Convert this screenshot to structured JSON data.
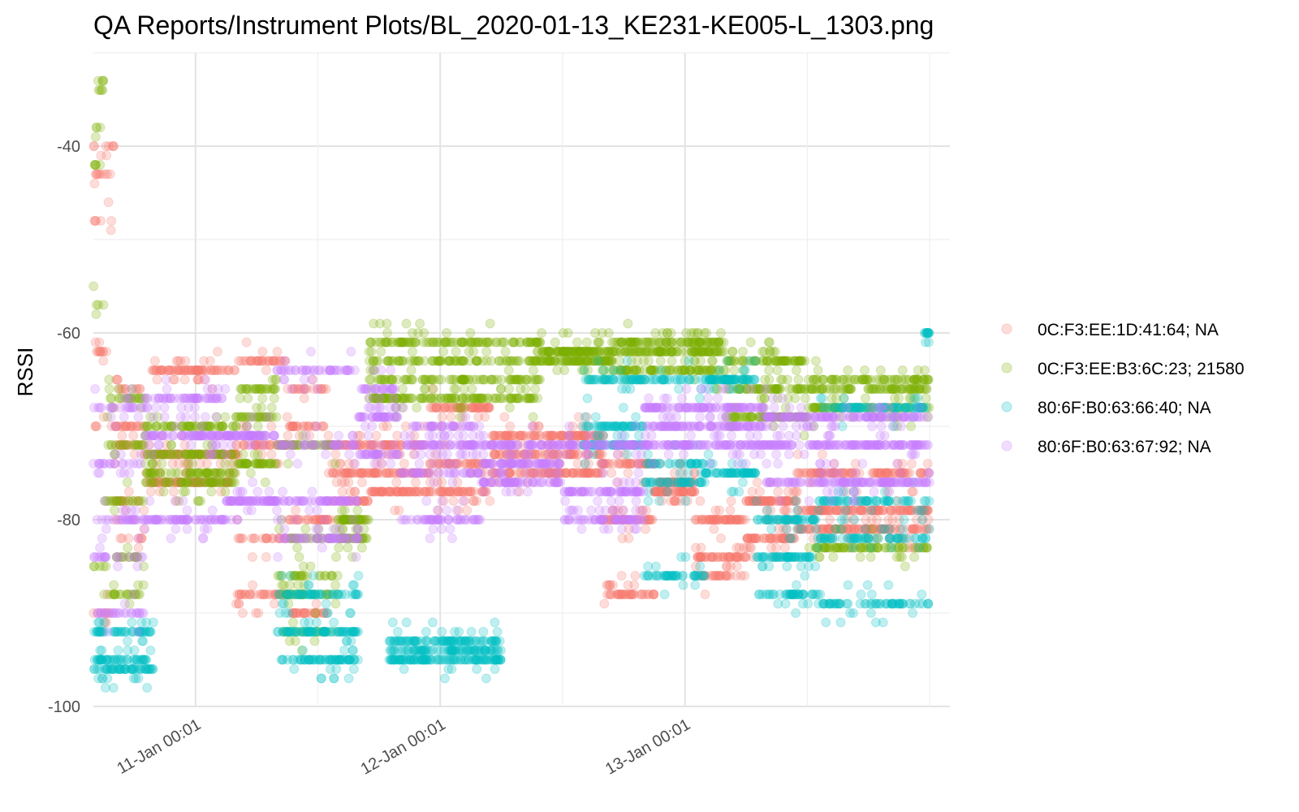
{
  "chart_data": {
    "type": "scatter",
    "title": "QA Reports/Instrument Plots/BL_2020-01-13_KE231-KE005-L_1303.png",
    "xlabel": "",
    "ylabel": "RSSI",
    "x_unit": "date-time (Jan 2020)",
    "xlim": [
      "2020-01-10T14:00",
      "2020-01-14T02:00"
    ],
    "ylim": [
      -100,
      -30
    ],
    "x_ticks": [
      {
        "value": "2020-01-11T00:01",
        "label": "11-Jan 00:01"
      },
      {
        "value": "2020-01-12T00:01",
        "label": "12-Jan 00:01"
      },
      {
        "value": "2020-01-13T00:01",
        "label": "13-Jan 00:01"
      }
    ],
    "y_ticks": [
      -100,
      -80,
      -60,
      -40
    ],
    "grid": true,
    "legend_position": "right",
    "point_alpha": 0.25,
    "series": [
      {
        "name": "0C:F3:EE:1D:41:64; NA",
        "color": "#F8766D",
        "segments": [
          {
            "start": "2020-01-10T14:00",
            "end": "2020-01-10T16:00",
            "levels": [
              -40,
              -43,
              -48,
              -62,
              -70,
              -90
            ]
          },
          {
            "start": "2020-01-10T16:00",
            "end": "2020-01-10T19:00",
            "levels": [
              -66,
              -70,
              -72,
              -78,
              -82
            ]
          },
          {
            "start": "2020-01-10T19:00",
            "end": "2020-01-11T04:00",
            "levels": [
              -64,
              -73,
              -76
            ]
          },
          {
            "start": "2020-01-11T04:00",
            "end": "2020-01-11T09:00",
            "levels": [
              -63,
              -72,
              -82,
              -88
            ]
          },
          {
            "start": "2020-01-11T09:00",
            "end": "2020-01-11T13:00",
            "levels": [
              -66,
              -70,
              -80,
              -90
            ]
          },
          {
            "start": "2020-01-11T13:00",
            "end": "2020-01-11T17:00",
            "levels": [
              -72,
              -75,
              -78
            ]
          },
          {
            "start": "2020-01-11T17:00",
            "end": "2020-01-11T23:00",
            "levels": [
              -72,
              -75,
              -77
            ]
          },
          {
            "start": "2020-01-11T23:00",
            "end": "2020-01-12T05:00",
            "levels": [
              -68,
              -74,
              -77
            ]
          },
          {
            "start": "2020-01-12T05:00",
            "end": "2020-01-12T16:00",
            "levels": [
              -71,
              -73,
              -75
            ]
          },
          {
            "start": "2020-01-12T16:00",
            "end": "2020-01-12T21:00",
            "levels": [
              -74,
              -80,
              -88
            ]
          },
          {
            "start": "2020-01-12T21:00",
            "end": "2020-01-13T01:00",
            "levels": [
              -76,
              -77
            ]
          },
          {
            "start": "2020-01-13T01:00",
            "end": "2020-01-13T06:00",
            "levels": [
              -80,
              -84,
              -86
            ]
          },
          {
            "start": "2020-01-13T06:00",
            "end": "2020-01-13T11:00",
            "levels": [
              -78,
              -82
            ]
          },
          {
            "start": "2020-01-13T11:00",
            "end": "2020-01-14T00:00",
            "levels": [
              -75,
              -79,
              -81
            ]
          }
        ]
      },
      {
        "name": "0C:F3:EE:B3:6C:23; 21580",
        "color": "#7CAE00",
        "segments": [
          {
            "start": "2020-01-10T14:00",
            "end": "2020-01-10T15:00",
            "levels": [
              -33,
              -34,
              -38,
              -42,
              -57,
              -85
            ]
          },
          {
            "start": "2020-01-10T15:00",
            "end": "2020-01-10T19:00",
            "levels": [
              -67,
              -72,
              -78,
              -84,
              -88
            ]
          },
          {
            "start": "2020-01-10T19:00",
            "end": "2020-01-11T04:00",
            "levels": [
              -70,
              -73,
              -75,
              -76
            ]
          },
          {
            "start": "2020-01-11T04:00",
            "end": "2020-01-11T08:00",
            "levels": [
              -66,
              -69,
              -74
            ]
          },
          {
            "start": "2020-01-11T08:00",
            "end": "2020-01-11T14:00",
            "levels": [
              -72,
              -82,
              -86,
              -88,
              -92
            ]
          },
          {
            "start": "2020-01-11T14:00",
            "end": "2020-01-11T17:00",
            "levels": [
              -80,
              -82
            ]
          },
          {
            "start": "2020-01-11T17:00",
            "end": "2020-01-12T10:00",
            "levels": [
              -61,
              -63,
              -65,
              -67
            ]
          },
          {
            "start": "2020-01-12T10:00",
            "end": "2020-01-12T17:00",
            "levels": [
              -62,
              -63
            ]
          },
          {
            "start": "2020-01-12T17:00",
            "end": "2020-01-13T04:00",
            "levels": [
              -61,
              -62,
              -64
            ]
          },
          {
            "start": "2020-01-13T04:00",
            "end": "2020-01-13T12:00",
            "levels": [
              -63,
              -66,
              -69
            ]
          },
          {
            "start": "2020-01-13T12:00",
            "end": "2020-01-14T00:00",
            "levels": [
              -65,
              -66,
              -68,
              -83
            ]
          }
        ]
      },
      {
        "name": "80:6F:B0:63:66:40; NA",
        "color": "#00BFC4",
        "segments": [
          {
            "start": "2020-01-10T14:00",
            "end": "2020-01-10T20:00",
            "levels": [
              -92,
              -95,
              -96
            ]
          },
          {
            "start": "2020-01-11T08:00",
            "end": "2020-01-11T16:00",
            "levels": [
              -88,
              -92,
              -95
            ]
          },
          {
            "start": "2020-01-11T19:00",
            "end": "2020-01-12T06:00",
            "levels": [
              -93,
              -94,
              -95
            ]
          },
          {
            "start": "2020-01-12T14:00",
            "end": "2020-01-12T20:00",
            "levels": [
              -65,
              -70,
              -72
            ]
          },
          {
            "start": "2020-01-12T20:00",
            "end": "2020-01-13T02:00",
            "levels": [
              -65,
              -74,
              -76,
              -86
            ]
          },
          {
            "start": "2020-01-13T02:00",
            "end": "2020-01-13T07:00",
            "levels": [
              -65,
              -75
            ]
          },
          {
            "start": "2020-01-13T07:00",
            "end": "2020-01-13T13:00",
            "levels": [
              -80,
              -84,
              -88
            ]
          },
          {
            "start": "2020-01-13T13:00",
            "end": "2020-01-14T00:00",
            "levels": [
              -68,
              -78,
              -82,
              -89
            ]
          },
          {
            "start": "2020-01-13T23:30",
            "end": "2020-01-14T00:00",
            "levels": [
              -60
            ]
          }
        ]
      },
      {
        "name": "80:6F:B0:63:67:92; NA",
        "color": "#C77CFF",
        "segments": [
          {
            "start": "2020-01-10T14:00",
            "end": "2020-01-10T19:00",
            "levels": [
              -68,
              -74,
              -80,
              -84,
              -90
            ]
          },
          {
            "start": "2020-01-10T19:00",
            "end": "2020-01-11T03:00",
            "levels": [
              -67,
              -71,
              -80
            ]
          },
          {
            "start": "2020-01-11T03:00",
            "end": "2020-01-11T08:00",
            "levels": [
              -71,
              -78
            ]
          },
          {
            "start": "2020-01-11T08:00",
            "end": "2020-01-11T16:00",
            "levels": [
              -64,
              -72,
              -78,
              -82
            ]
          },
          {
            "start": "2020-01-11T16:00",
            "end": "2020-01-11T20:00",
            "levels": [
              -66,
              -69,
              -73
            ]
          },
          {
            "start": "2020-01-11T20:00",
            "end": "2020-01-12T04:00",
            "levels": [
              -70,
              -72,
              -75,
              -80
            ]
          },
          {
            "start": "2020-01-12T04:00",
            "end": "2020-01-12T12:00",
            "levels": [
              -72,
              -74,
              -76
            ]
          },
          {
            "start": "2020-01-12T12:00",
            "end": "2020-01-12T20:00",
            "levels": [
              -72,
              -77,
              -80
            ]
          },
          {
            "start": "2020-01-12T20:00",
            "end": "2020-01-13T08:00",
            "levels": [
              -68,
              -70,
              -72
            ]
          },
          {
            "start": "2020-01-13T08:00",
            "end": "2020-01-14T00:00",
            "levels": [
              -69,
              -72,
              -76
            ]
          }
        ]
      }
    ]
  }
}
